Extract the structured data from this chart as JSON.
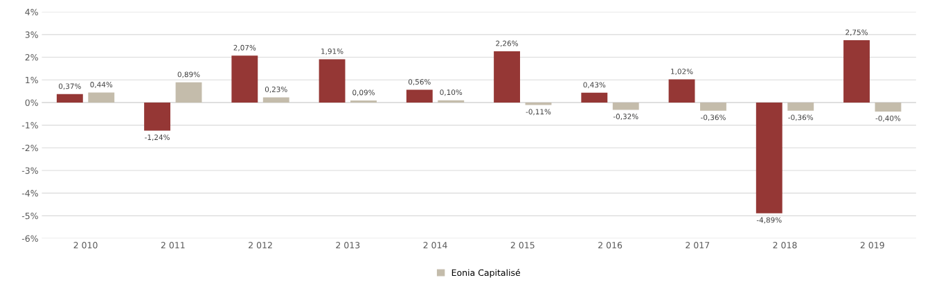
{
  "chart_data": {
    "type": "bar",
    "categories": [
      "2 010",
      "2 011",
      "2 012",
      "2 013",
      "2 014",
      "2 015",
      "2 016",
      "2 017",
      "2 018",
      "2 019"
    ],
    "series": [
      {
        "color": "#953735",
        "values": [
          0.37,
          -1.24,
          2.07,
          1.91,
          0.56,
          2.26,
          0.43,
          1.02,
          -4.89,
          2.75
        ],
        "value_labels": [
          "0,37%",
          "-1,24%",
          "2,07%",
          "1,91%",
          "0,56%",
          "2,26%",
          "0,43%",
          "1,02%",
          "-4,89%",
          "2,75%"
        ]
      },
      {
        "name": "Eonia Capitalisé",
        "color": "#c4bcab",
        "values": [
          0.44,
          0.89,
          0.23,
          0.09,
          0.1,
          -0.11,
          -0.32,
          -0.36,
          -0.36,
          -0.4
        ],
        "value_labels": [
          "0,44%",
          "0,89%",
          "0,23%",
          "0,09%",
          "0,10%",
          "-0,11%",
          "-0,32%",
          "-0,36%",
          "-0,36%",
          "-0,40%"
        ]
      }
    ],
    "ylim": [
      -6,
      4
    ],
    "yticks": [
      {
        "value": -6,
        "label": "-6%"
      },
      {
        "value": -5,
        "label": "-5%"
      },
      {
        "value": -4,
        "label": "-4%"
      },
      {
        "value": -3,
        "label": "-3%"
      },
      {
        "value": -2,
        "label": "-2%"
      },
      {
        "value": -1,
        "label": "-1%"
      },
      {
        "value": 0,
        "label": "0%"
      },
      {
        "value": 1,
        "label": "1%"
      },
      {
        "value": 2,
        "label": "2%"
      },
      {
        "value": 3,
        "label": "3%"
      },
      {
        "value": 4,
        "label": "4%"
      }
    ],
    "grid": "y",
    "legend": "bottom"
  }
}
